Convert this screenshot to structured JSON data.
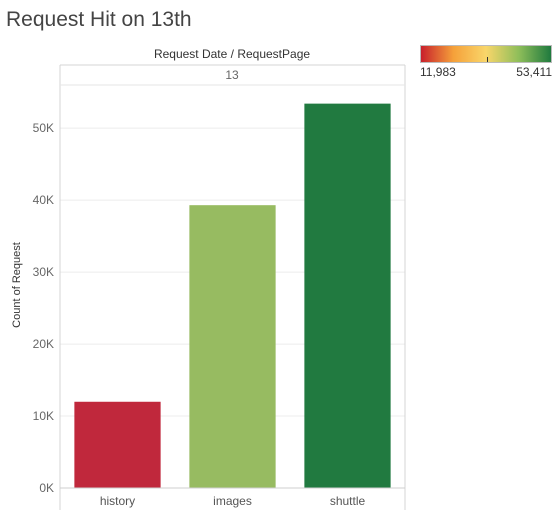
{
  "chart_data": {
    "type": "bar",
    "title": "Request Hit on 13th",
    "header_label": "Request Date / RequestPage",
    "group_label": "13",
    "ylabel": "Count of Request",
    "categories": [
      "history",
      "images",
      "shuttle"
    ],
    "values": [
      11983,
      39300,
      53411
    ],
    "ylim": [
      0,
      56000
    ],
    "yticks": [
      0,
      10000,
      20000,
      30000,
      40000,
      50000
    ],
    "ytick_labels": [
      "0K",
      "10K",
      "20K",
      "30K",
      "40K",
      "50K"
    ],
    "bar_colors": [
      "#c0283c",
      "#97bb61",
      "#217a40"
    ],
    "grid": true,
    "color_legend": {
      "placement": "top-right",
      "min_label": "11,983",
      "max_label": "53,411",
      "gradient": [
        "#c8202c",
        "#f5a13a",
        "#f9d66a",
        "#8fbe5a",
        "#1f7a3e"
      ]
    }
  }
}
